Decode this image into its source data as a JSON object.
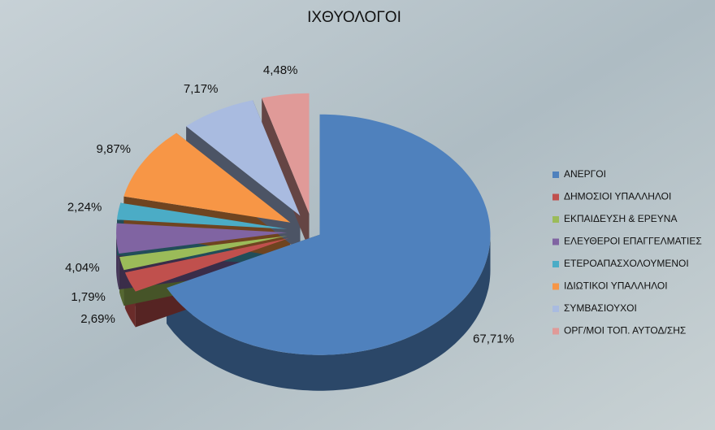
{
  "chart_data": {
    "type": "pie3d",
    "title": "ΙΧΘΥΟΛΟΓΟΙ",
    "categories": [
      "ΑΝΕΡΓΟΙ",
      "ΔΗΜΟΣΙΟΙ ΥΠΑΛΛΗΛΟΙ",
      "ΕΚΠΑΙΔΕΥΣΗ & ΕΡΕΥΝΑ",
      "ΕΛΕΥΘΕΡΟΙ ΕΠΑΓΓΕΛΜΑΤΙΕΣ",
      "ΕΤΕΡΟΑΠΑΣΧΟΛΟΥΜΕΝΟΙ",
      "ΙΔΙΩΤΙΚΟΙ ΥΠΑΛΛΗΛΟΙ",
      "ΣΥΜΒΑΣΙΟΥΧΟΙ",
      "ΟΡΓ/ΜΟΙ ΤΟΠ. ΑΥΤΟΔ/ΣΗΣ"
    ],
    "values": [
      67.71,
      2.69,
      1.79,
      4.04,
      2.24,
      9.87,
      7.17,
      4.48
    ],
    "value_labels": [
      "67,71%",
      "2,69%",
      "1,79%",
      "4,04%",
      "2,24%",
      "9,87%",
      "7,17%",
      "4,48%"
    ],
    "colors": [
      "#4f81bd",
      "#c0504d",
      "#9bbb59",
      "#8064a2",
      "#4bacc6",
      "#f79646",
      "#a9bbe0",
      "#e09a98"
    ],
    "legend": "right"
  }
}
